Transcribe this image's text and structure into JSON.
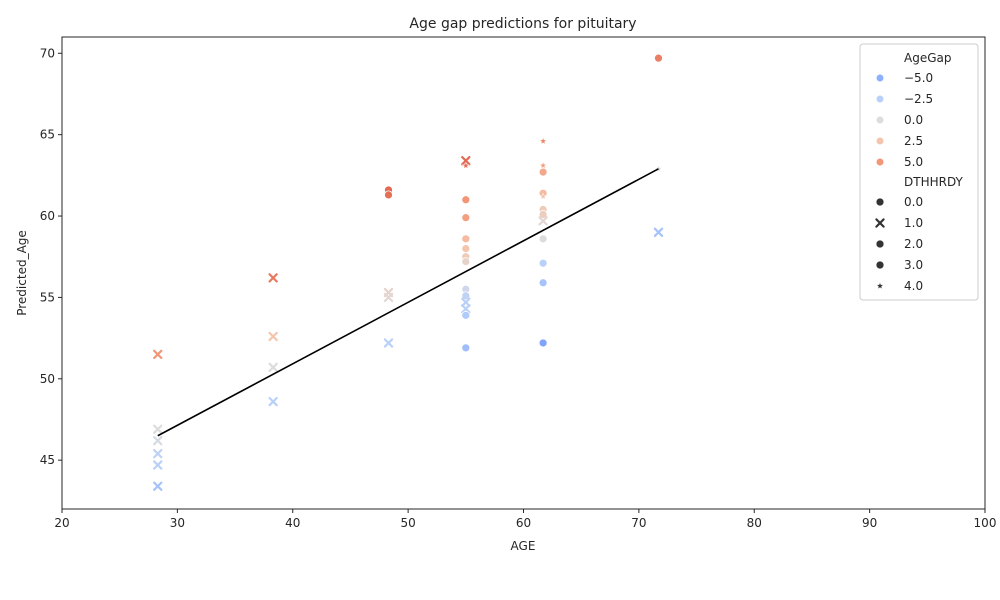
{
  "chart_data": {
    "type": "scatter",
    "title": "Age gap predictions for pituitary",
    "xlabel": "AGE",
    "ylabel": "Predicted_Age",
    "xlim": [
      20,
      100
    ],
    "ylim": [
      42,
      71
    ],
    "xticks": [
      "20",
      "30",
      "40",
      "50",
      "60",
      "70",
      "80",
      "90",
      "100"
    ],
    "yticks": [
      "45",
      "50",
      "55",
      "60",
      "65",
      "70"
    ],
    "hue_title": "AgeGap",
    "hue_entries": [
      {
        "label": "−5.0",
        "color": "#8db0fe"
      },
      {
        "label": "−2.5",
        "color": "#b9d0f9"
      },
      {
        "label": "0.0",
        "color": "#dddcdc"
      },
      {
        "label": "2.5",
        "color": "#f4c5ad"
      },
      {
        "label": "5.0",
        "color": "#f39577"
      }
    ],
    "style_title": "DTHHRDY",
    "style_entries": [
      {
        "label": "0.0",
        "marker": "circle"
      },
      {
        "label": "1.0",
        "marker": "x"
      },
      {
        "label": "2.0",
        "marker": "circle"
      },
      {
        "label": "3.0",
        "marker": "circle"
      },
      {
        "label": "4.0",
        "marker": "star"
      }
    ],
    "points": [
      {
        "x": 28.3,
        "y": 51.5,
        "gap": 5.0,
        "marker": "x"
      },
      {
        "x": 28.3,
        "y": 46.9,
        "gap": 0.0,
        "marker": "x"
      },
      {
        "x": 28.3,
        "y": 46.2,
        "gap": -0.5,
        "marker": "x"
      },
      {
        "x": 28.3,
        "y": 45.4,
        "gap": -2.0,
        "marker": "x"
      },
      {
        "x": 28.3,
        "y": 44.7,
        "gap": -2.5,
        "marker": "x"
      },
      {
        "x": 28.3,
        "y": 43.4,
        "gap": -3.5,
        "marker": "x"
      },
      {
        "x": 38.3,
        "y": 56.2,
        "gap": 7.0,
        "marker": "x"
      },
      {
        "x": 38.3,
        "y": 52.6,
        "gap": 2.5,
        "marker": "x"
      },
      {
        "x": 38.3,
        "y": 50.7,
        "gap": 0.0,
        "marker": "x"
      },
      {
        "x": 38.3,
        "y": 48.6,
        "gap": -2.5,
        "marker": "x"
      },
      {
        "x": 48.3,
        "y": 61.6,
        "gap": 8.0,
        "marker": "circle"
      },
      {
        "x": 48.3,
        "y": 61.3,
        "gap": 7.5,
        "marker": "circle"
      },
      {
        "x": 48.3,
        "y": 55.3,
        "gap": 1.0,
        "marker": "x"
      },
      {
        "x": 48.3,
        "y": 55.0,
        "gap": 0.5,
        "marker": "x"
      },
      {
        "x": 48.3,
        "y": 52.2,
        "gap": -2.5,
        "marker": "x"
      },
      {
        "x": 55.0,
        "y": 63.4,
        "gap": 8.0,
        "marker": "x"
      },
      {
        "x": 55.0,
        "y": 63.1,
        "gap": 7.5,
        "marker": "star"
      },
      {
        "x": 55.0,
        "y": 61.0,
        "gap": 5.0,
        "marker": "circle"
      },
      {
        "x": 55.0,
        "y": 59.9,
        "gap": 4.5,
        "marker": "circle"
      },
      {
        "x": 55.0,
        "y": 58.6,
        "gap": 3.0,
        "marker": "circle"
      },
      {
        "x": 55.0,
        "y": 58.0,
        "gap": 2.5,
        "marker": "circle"
      },
      {
        "x": 55.0,
        "y": 57.5,
        "gap": 2.0,
        "marker": "circle"
      },
      {
        "x": 55.0,
        "y": 57.2,
        "gap": 1.0,
        "marker": "circle"
      },
      {
        "x": 55.0,
        "y": 55.5,
        "gap": -1.0,
        "marker": "circle"
      },
      {
        "x": 55.0,
        "y": 55.1,
        "gap": -2.0,
        "marker": "circle"
      },
      {
        "x": 55.0,
        "y": 54.7,
        "gap": -2.5,
        "marker": "x"
      },
      {
        "x": 55.0,
        "y": 54.3,
        "gap": -2.5,
        "marker": "x"
      },
      {
        "x": 55.0,
        "y": 53.9,
        "gap": -3.0,
        "marker": "circle"
      },
      {
        "x": 55.0,
        "y": 51.9,
        "gap": -4.0,
        "marker": "circle"
      },
      {
        "x": 61.7,
        "y": 64.6,
        "gap": 6.0,
        "marker": "star"
      },
      {
        "x": 61.7,
        "y": 63.1,
        "gap": 4.5,
        "marker": "star"
      },
      {
        "x": 61.7,
        "y": 62.7,
        "gap": 4.0,
        "marker": "circle"
      },
      {
        "x": 61.7,
        "y": 61.4,
        "gap": 3.0,
        "marker": "circle"
      },
      {
        "x": 61.7,
        "y": 61.2,
        "gap": 2.5,
        "marker": "star"
      },
      {
        "x": 61.7,
        "y": 60.4,
        "gap": 2.0,
        "marker": "circle"
      },
      {
        "x": 61.7,
        "y": 60.1,
        "gap": 1.5,
        "marker": "circle"
      },
      {
        "x": 61.7,
        "y": 59.7,
        "gap": 0.5,
        "marker": "x"
      },
      {
        "x": 61.7,
        "y": 58.6,
        "gap": 0.0,
        "marker": "circle"
      },
      {
        "x": 61.7,
        "y": 57.1,
        "gap": -2.5,
        "marker": "circle"
      },
      {
        "x": 61.7,
        "y": 55.9,
        "gap": -3.5,
        "marker": "circle"
      },
      {
        "x": 61.7,
        "y": 52.2,
        "gap": -6.0,
        "marker": "circle"
      },
      {
        "x": 71.7,
        "y": 69.7,
        "gap": 6.5,
        "marker": "circle"
      },
      {
        "x": 71.7,
        "y": 62.9,
        "gap": 0.0,
        "marker": "star"
      },
      {
        "x": 71.7,
        "y": 59.0,
        "gap": -3.5,
        "marker": "x"
      }
    ],
    "trend_line": [
      [
        28.3,
        46.5
      ],
      [
        71.7,
        62.9
      ]
    ]
  }
}
